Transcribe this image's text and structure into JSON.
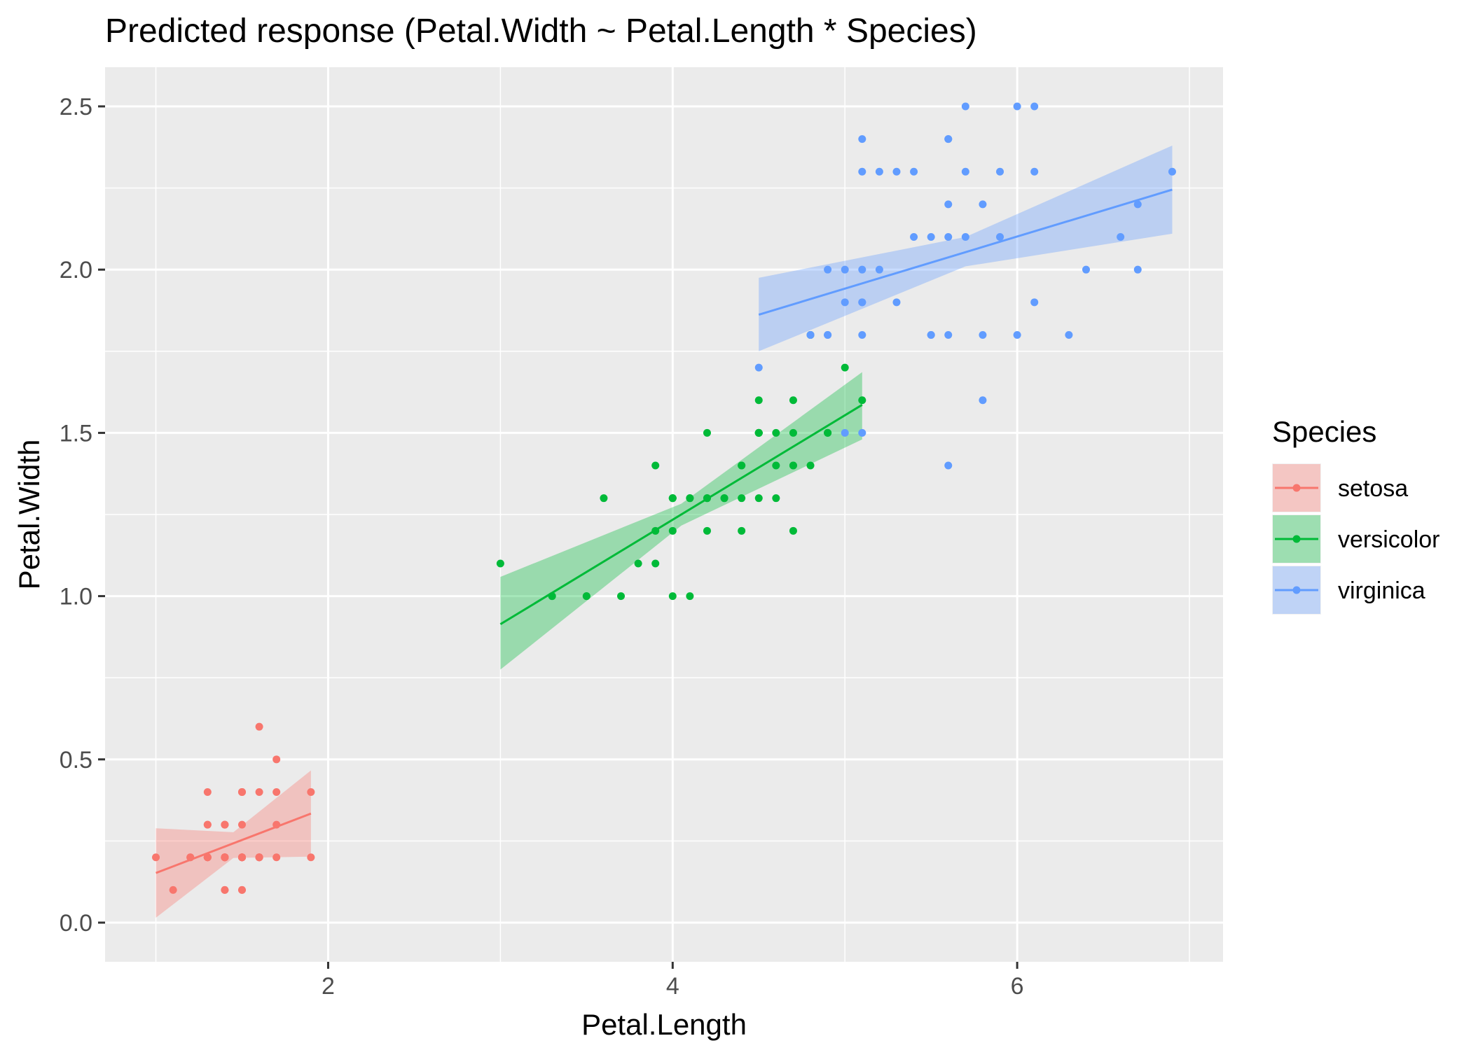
{
  "chart_data": {
    "type": "scatter",
    "title": "Predicted response (Petal.Width ~ Petal.Length * Species)",
    "xlabel": "Petal.Length",
    "ylabel": "Petal.Width",
    "xlim": [
      0.705,
      7.195
    ],
    "ylim": [
      -0.12,
      2.62
    ],
    "x_ticks": [
      2,
      4,
      6
    ],
    "x_tick_labels": [
      "2",
      "4",
      "6"
    ],
    "y_ticks": [
      0.0,
      0.5,
      1.0,
      1.5,
      2.0,
      2.5
    ],
    "y_tick_labels": [
      "0.0",
      "0.5",
      "1.0",
      "1.5",
      "2.0",
      "2.5"
    ],
    "grid": true,
    "legend": {
      "title": "Species",
      "position": "right"
    },
    "series": [
      {
        "name": "setosa",
        "color": "#F8766D",
        "points": [
          [
            1.4,
            0.2
          ],
          [
            1.4,
            0.2
          ],
          [
            1.3,
            0.2
          ],
          [
            1.5,
            0.2
          ],
          [
            1.4,
            0.2
          ],
          [
            1.7,
            0.4
          ],
          [
            1.4,
            0.3
          ],
          [
            1.5,
            0.2
          ],
          [
            1.4,
            0.2
          ],
          [
            1.5,
            0.1
          ],
          [
            1.5,
            0.2
          ],
          [
            1.6,
            0.2
          ],
          [
            1.4,
            0.1
          ],
          [
            1.1,
            0.1
          ],
          [
            1.2,
            0.2
          ],
          [
            1.5,
            0.4
          ],
          [
            1.3,
            0.4
          ],
          [
            1.4,
            0.3
          ],
          [
            1.7,
            0.3
          ],
          [
            1.5,
            0.3
          ],
          [
            1.7,
            0.2
          ],
          [
            1.5,
            0.4
          ],
          [
            1.0,
            0.2
          ],
          [
            1.7,
            0.5
          ],
          [
            1.9,
            0.2
          ],
          [
            1.6,
            0.2
          ],
          [
            1.6,
            0.4
          ],
          [
            1.5,
            0.2
          ],
          [
            1.4,
            0.2
          ],
          [
            1.6,
            0.2
          ],
          [
            1.6,
            0.2
          ],
          [
            1.5,
            0.4
          ],
          [
            1.5,
            0.1
          ],
          [
            1.4,
            0.2
          ],
          [
            1.5,
            0.2
          ],
          [
            1.2,
            0.2
          ],
          [
            1.3,
            0.2
          ],
          [
            1.4,
            0.1
          ],
          [
            1.3,
            0.2
          ],
          [
            1.5,
            0.2
          ],
          [
            1.3,
            0.3
          ],
          [
            1.3,
            0.3
          ],
          [
            1.3,
            0.2
          ],
          [
            1.6,
            0.6
          ],
          [
            1.9,
            0.4
          ],
          [
            1.4,
            0.3
          ],
          [
            1.6,
            0.2
          ],
          [
            1.4,
            0.2
          ],
          [
            1.5,
            0.2
          ],
          [
            1.4,
            0.2
          ]
        ],
        "fit": {
          "x": [
            1.0,
            1.9
          ],
          "y": [
            0.152,
            0.334
          ]
        },
        "ci": {
          "x": [
            1.0,
            1.45,
            1.9
          ],
          "lower": [
            0.015,
            0.198,
            0.202
          ],
          "upper": [
            0.289,
            0.277,
            0.466
          ]
        }
      },
      {
        "name": "versicolor",
        "color": "#00BA38",
        "points": [
          [
            4.7,
            1.4
          ],
          [
            4.5,
            1.5
          ],
          [
            4.9,
            1.5
          ],
          [
            4.0,
            1.3
          ],
          [
            4.6,
            1.5
          ],
          [
            4.5,
            1.3
          ],
          [
            4.7,
            1.6
          ],
          [
            3.3,
            1.0
          ],
          [
            4.6,
            1.3
          ],
          [
            3.9,
            1.4
          ],
          [
            3.5,
            1.0
          ],
          [
            4.2,
            1.5
          ],
          [
            4.0,
            1.0
          ],
          [
            4.7,
            1.4
          ],
          [
            3.6,
            1.3
          ],
          [
            4.4,
            1.4
          ],
          [
            4.5,
            1.5
          ],
          [
            4.1,
            1.0
          ],
          [
            4.5,
            1.5
          ],
          [
            3.9,
            1.1
          ],
          [
            4.8,
            1.8
          ],
          [
            4.0,
            1.3
          ],
          [
            4.9,
            1.5
          ],
          [
            4.7,
            1.2
          ],
          [
            4.3,
            1.3
          ],
          [
            4.4,
            1.4
          ],
          [
            4.8,
            1.4
          ],
          [
            5.0,
            1.7
          ],
          [
            4.5,
            1.5
          ],
          [
            3.5,
            1.0
          ],
          [
            3.8,
            1.1
          ],
          [
            3.7,
            1.0
          ],
          [
            3.9,
            1.2
          ],
          [
            5.1,
            1.6
          ],
          [
            4.5,
            1.5
          ],
          [
            4.5,
            1.6
          ],
          [
            4.7,
            1.5
          ],
          [
            4.4,
            1.3
          ],
          [
            4.1,
            1.3
          ],
          [
            4.0,
            1.3
          ],
          [
            4.4,
            1.2
          ],
          [
            4.6,
            1.4
          ],
          [
            4.0,
            1.2
          ],
          [
            3.3,
            1.0
          ],
          [
            4.2,
            1.3
          ],
          [
            4.2,
            1.2
          ],
          [
            4.2,
            1.3
          ],
          [
            4.3,
            1.3
          ],
          [
            3.0,
            1.1
          ],
          [
            4.1,
            1.3
          ]
        ],
        "fit": {
          "x": [
            3.0,
            5.1
          ],
          "y": [
            0.914,
            1.586
          ]
        },
        "ci": {
          "x": [
            3.0,
            4.05,
            5.1
          ],
          "lower": [
            0.775,
            1.216,
            1.48
          ],
          "upper": [
            1.059,
            1.283,
            1.686
          ]
        }
      },
      {
        "name": "virginica",
        "color": "#619CFF",
        "points": [
          [
            6.0,
            2.5
          ],
          [
            5.1,
            1.9
          ],
          [
            5.9,
            2.1
          ],
          [
            5.6,
            1.8
          ],
          [
            5.8,
            2.2
          ],
          [
            6.6,
            2.1
          ],
          [
            4.5,
            1.7
          ],
          [
            6.3,
            1.8
          ],
          [
            5.8,
            1.8
          ],
          [
            6.1,
            2.5
          ],
          [
            5.1,
            2.0
          ],
          [
            5.3,
            1.9
          ],
          [
            5.5,
            2.1
          ],
          [
            5.0,
            2.0
          ],
          [
            5.1,
            2.4
          ],
          [
            5.3,
            2.3
          ],
          [
            5.5,
            1.8
          ],
          [
            6.7,
            2.2
          ],
          [
            6.9,
            2.3
          ],
          [
            5.0,
            1.5
          ],
          [
            5.7,
            2.3
          ],
          [
            4.9,
            2.0
          ],
          [
            6.7,
            2.0
          ],
          [
            4.9,
            1.8
          ],
          [
            5.7,
            2.1
          ],
          [
            6.0,
            1.8
          ],
          [
            4.8,
            1.8
          ],
          [
            4.9,
            1.8
          ],
          [
            5.6,
            2.1
          ],
          [
            5.8,
            1.6
          ],
          [
            6.1,
            1.9
          ],
          [
            6.4,
            2.0
          ],
          [
            5.6,
            2.2
          ],
          [
            5.1,
            1.5
          ],
          [
            5.6,
            1.4
          ],
          [
            6.1,
            2.3
          ],
          [
            5.6,
            2.4
          ],
          [
            5.5,
            1.8
          ],
          [
            4.8,
            1.8
          ],
          [
            5.4,
            2.1
          ],
          [
            5.6,
            2.4
          ],
          [
            5.1,
            2.3
          ],
          [
            5.1,
            1.9
          ],
          [
            5.9,
            2.3
          ],
          [
            5.7,
            2.5
          ],
          [
            5.2,
            2.3
          ],
          [
            5.0,
            1.9
          ],
          [
            5.2,
            2.0
          ],
          [
            5.4,
            2.3
          ],
          [
            5.1,
            1.8
          ]
        ],
        "fit": {
          "x": [
            4.5,
            6.9
          ],
          "y": [
            1.862,
            2.245
          ]
        },
        "ci": {
          "x": [
            4.5,
            5.7,
            6.9
          ],
          "lower": [
            1.75,
            2.01,
            2.11
          ],
          "upper": [
            1.975,
            2.1,
            2.38
          ]
        }
      }
    ]
  }
}
